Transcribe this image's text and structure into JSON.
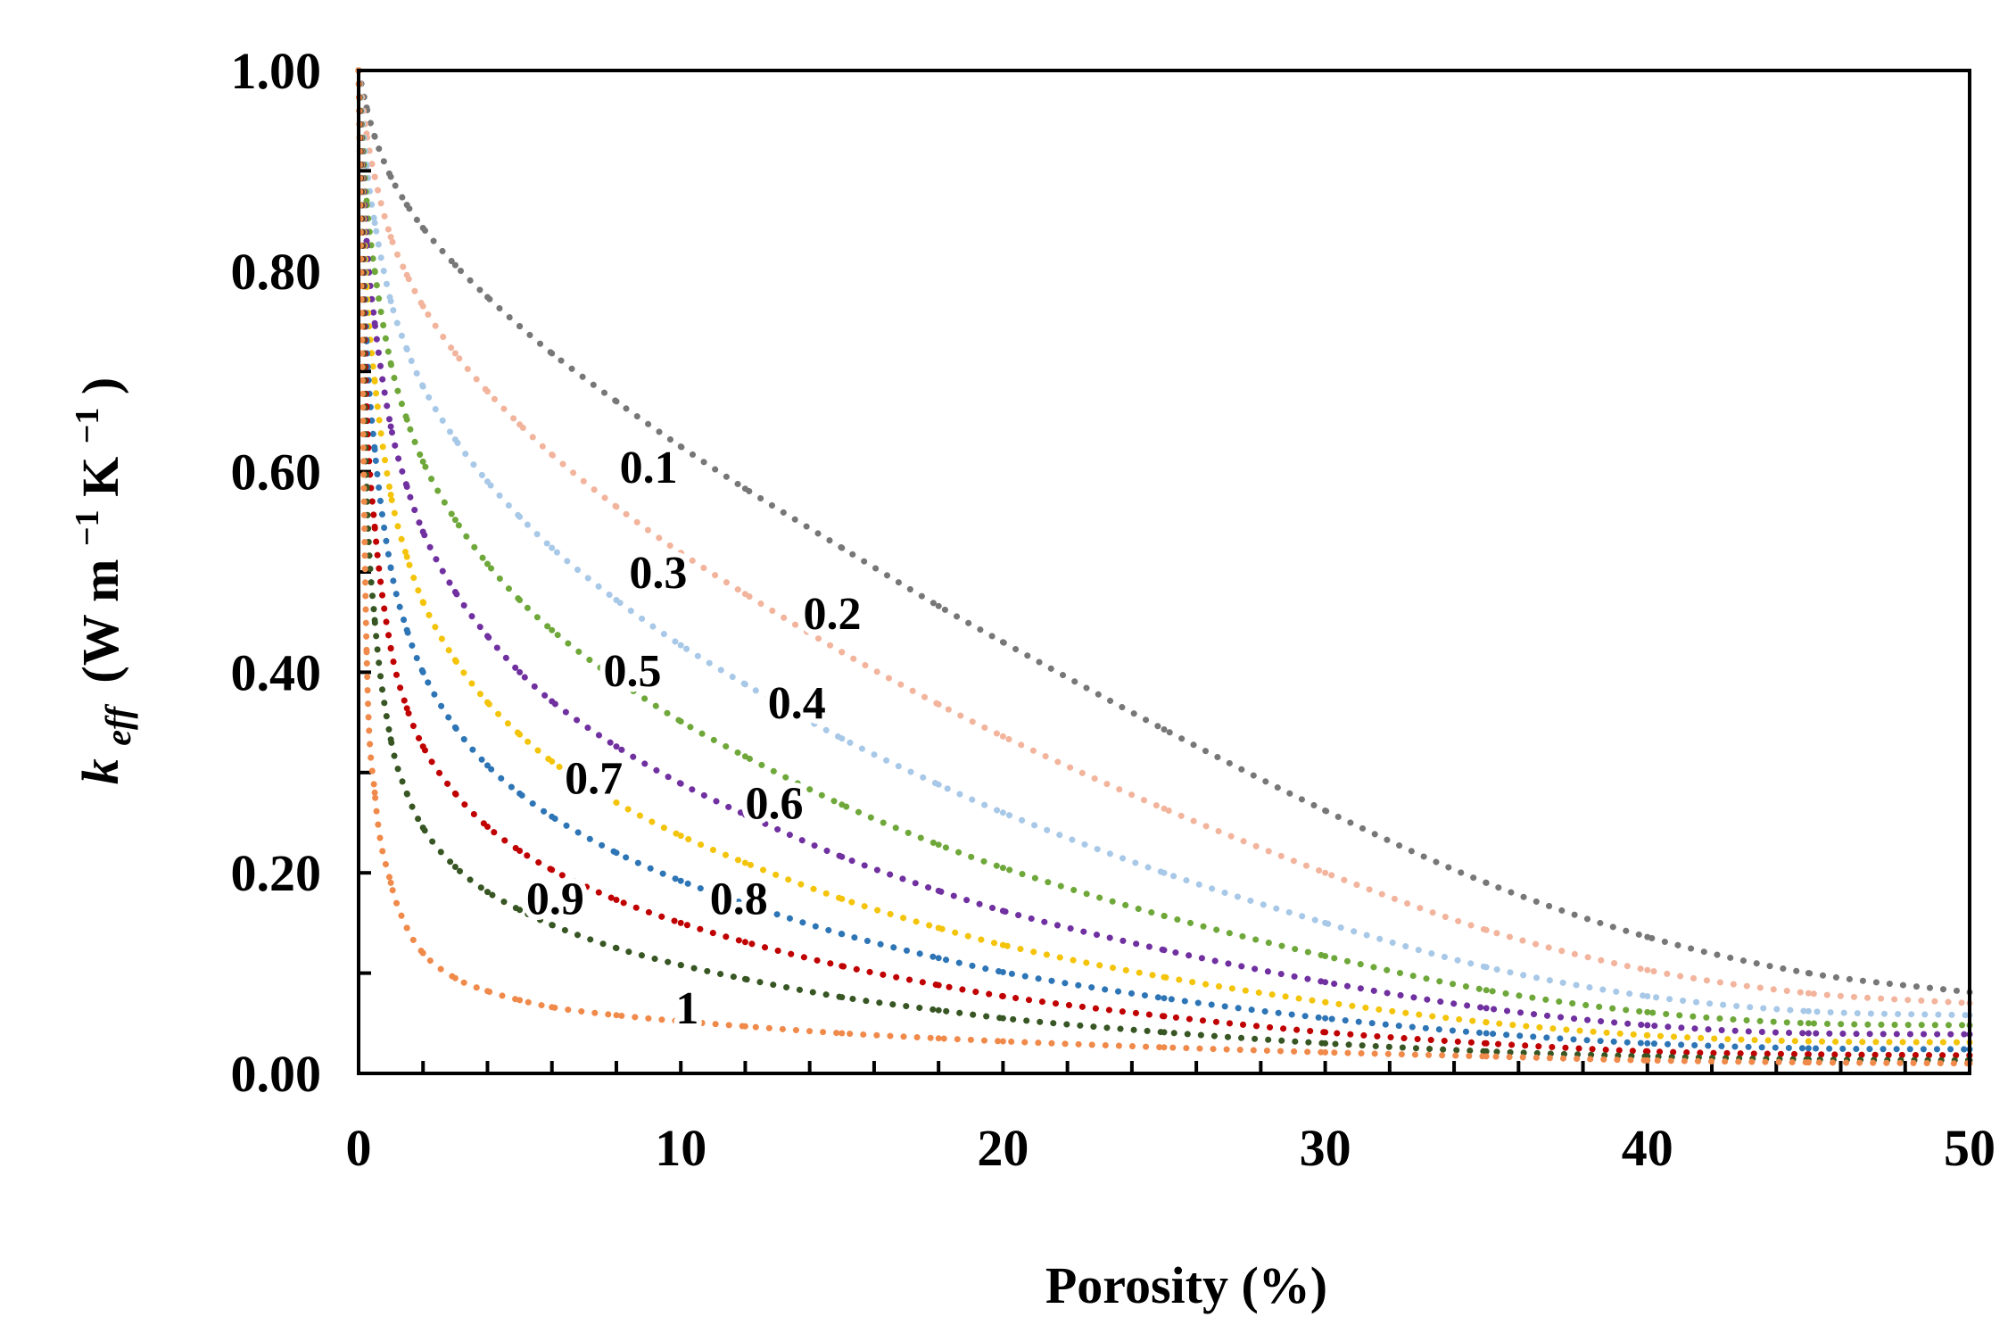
{
  "chart_data": {
    "type": "line",
    "title": "",
    "xlabel": "Porosity (%)",
    "ylabel_main": "k",
    "ylabel_sub": "eff",
    "ylabel_units_prefix": "(W m",
    "ylabel_units_exp1": "−1",
    "ylabel_units_mid": " K",
    "ylabel_units_exp2": "−1",
    "ylabel_units_suffix": ")",
    "xlim": [
      0,
      50
    ],
    "ylim": [
      0,
      1
    ],
    "x_ticks": [
      {
        "value": 0,
        "label": "0"
      },
      {
        "value": 10,
        "label": "10"
      },
      {
        "value": 20,
        "label": "20"
      },
      {
        "value": 30,
        "label": "30"
      },
      {
        "value": 40,
        "label": "40"
      },
      {
        "value": 50,
        "label": "50"
      }
    ],
    "y_ticks": [
      {
        "value": 0,
        "label": "0.00"
      },
      {
        "value": 0.2,
        "label": "0.20"
      },
      {
        "value": 0.4,
        "label": "0.40"
      },
      {
        "value": 0.6,
        "label": "0.60"
      },
      {
        "value": 0.8,
        "label": "0.80"
      },
      {
        "value": 1,
        "label": "1.00"
      }
    ],
    "x_minor_step": 2,
    "y_minor_step": 0.1,
    "x": [
      0,
      0.25,
      0.5,
      1,
      1.5,
      2,
      3,
      4,
      5,
      6,
      8,
      10,
      12,
      15,
      18,
      20,
      25,
      30,
      35,
      40,
      45,
      50
    ],
    "series": [
      {
        "name": "0.1",
        "label": "0.1",
        "color": "#777777",
        "label_at": [
          9.0,
          0.605
        ],
        "values": [
          1.0,
          0.963,
          0.934,
          0.894,
          0.866,
          0.843,
          0.806,
          0.774,
          0.745,
          0.718,
          0.67,
          0.625,
          0.583,
          0.524,
          0.466,
          0.43,
          0.343,
          0.262,
          0.19,
          0.136,
          0.1,
          0.081
        ]
      },
      {
        "name": "0.2",
        "label": "0.2",
        "color": "#f2b49c",
        "label_at": [
          14.7,
          0.459
        ],
        "values": [
          1.0,
          0.937,
          0.894,
          0.834,
          0.796,
          0.765,
          0.718,
          0.68,
          0.647,
          0.617,
          0.565,
          0.519,
          0.478,
          0.42,
          0.368,
          0.336,
          0.264,
          0.2,
          0.143,
          0.103,
          0.08,
          0.07
        ]
      },
      {
        "name": "0.3",
        "label": "0.3",
        "color": "#a8c8e8",
        "label_at": [
          9.3,
          0.5
        ],
        "values": [
          1.0,
          0.905,
          0.848,
          0.77,
          0.722,
          0.685,
          0.632,
          0.59,
          0.555,
          0.524,
          0.472,
          0.427,
          0.388,
          0.334,
          0.288,
          0.26,
          0.2,
          0.15,
          0.106,
          0.077,
          0.062,
          0.058
        ]
      },
      {
        "name": "0.4",
        "label": "0.4",
        "color": "#6fa83a",
        "label_at": [
          13.6,
          0.37
        ],
        "values": [
          1.0,
          0.87,
          0.8,
          0.708,
          0.652,
          0.61,
          0.552,
          0.508,
          0.472,
          0.442,
          0.393,
          0.351,
          0.316,
          0.268,
          0.228,
          0.205,
          0.157,
          0.117,
          0.083,
          0.061,
          0.05,
          0.048
        ]
      },
      {
        "name": "0.5",
        "label": "0.5",
        "color": "#7030a0",
        "label_at": [
          8.5,
          0.402
        ],
        "values": [
          1.0,
          0.83,
          0.748,
          0.645,
          0.585,
          0.54,
          0.48,
          0.436,
          0.4,
          0.371,
          0.326,
          0.289,
          0.258,
          0.216,
          0.182,
          0.162,
          0.123,
          0.091,
          0.065,
          0.048,
          0.04,
          0.039
        ]
      },
      {
        "name": "0.6",
        "label": "0.6",
        "color": "#f4c40a",
        "label_at": [
          12.9,
          0.27
        ],
        "values": [
          1.0,
          0.784,
          0.69,
          0.577,
          0.515,
          0.47,
          0.412,
          0.37,
          0.338,
          0.311,
          0.27,
          0.237,
          0.21,
          0.174,
          0.145,
          0.128,
          0.096,
          0.071,
          0.051,
          0.038,
          0.032,
          0.031
        ]
      },
      {
        "name": "0.7",
        "label": "0.7",
        "color": "#2e75b6",
        "label_at": [
          7.3,
          0.295
        ],
        "values": [
          1.0,
          0.73,
          0.622,
          0.504,
          0.442,
          0.4,
          0.345,
          0.307,
          0.279,
          0.256,
          0.22,
          0.192,
          0.169,
          0.139,
          0.115,
          0.101,
          0.075,
          0.055,
          0.04,
          0.03,
          0.025,
          0.024
        ]
      },
      {
        "name": "0.8",
        "label": "0.8",
        "color": "#c00000",
        "label_at": [
          11.8,
          0.175
        ],
        "values": [
          1.0,
          0.665,
          0.545,
          0.424,
          0.364,
          0.326,
          0.279,
          0.246,
          0.222,
          0.203,
          0.173,
          0.15,
          0.131,
          0.107,
          0.088,
          0.077,
          0.057,
          0.041,
          0.03,
          0.022,
          0.019,
          0.018
        ]
      },
      {
        "name": "0.9",
        "label": "0.9",
        "color": "#375623",
        "label_at": [
          6.1,
          0.175
        ],
        "values": [
          1.0,
          0.585,
          0.452,
          0.333,
          0.279,
          0.245,
          0.206,
          0.181,
          0.163,
          0.148,
          0.125,
          0.108,
          0.094,
          0.076,
          0.063,
          0.055,
          0.041,
          0.03,
          0.022,
          0.017,
          0.014,
          0.013
        ]
      },
      {
        "name": "1",
        "label": "1",
        "color": "#f08a4b",
        "label_at": [
          10.2,
          0.066
        ],
        "values": [
          1.0,
          0.42,
          0.28,
          0.19,
          0.145,
          0.12,
          0.095,
          0.082,
          0.073,
          0.066,
          0.058,
          0.052,
          0.047,
          0.04,
          0.035,
          0.032,
          0.026,
          0.021,
          0.017,
          0.013,
          0.011,
          0.01
        ]
      }
    ]
  }
}
